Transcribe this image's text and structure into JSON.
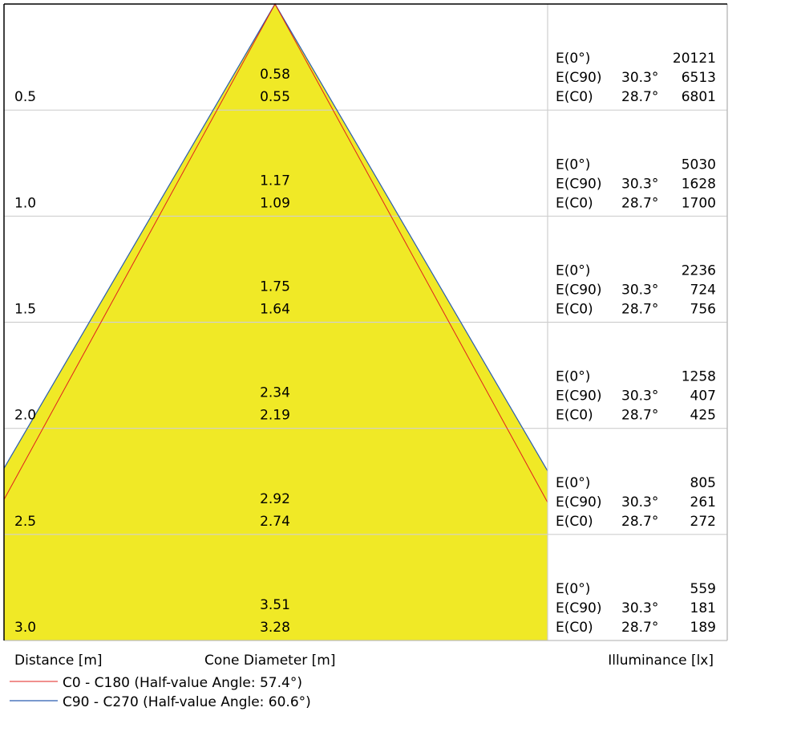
{
  "chart_data": {
    "type": "cone-diagram",
    "xlabel": "Distance [m]",
    "center_label": "Cone Diameter [m]",
    "right_label": "Illuminance [lx]",
    "fill_color": "#F0E926",
    "series": [
      {
        "name": "C0 - C180 (Half-value Angle: 57.4°)",
        "color": "#E0201E",
        "half_angle_deg": 57.4
      },
      {
        "name": "C90 - C270 (Half-value Angle: 60.6°)",
        "color": "#2A5CB0",
        "half_angle_deg": 60.6
      }
    ],
    "rows": [
      {
        "distance": "0.5",
        "d_c90": "0.58",
        "d_c0": "0.55",
        "e0": "20121",
        "e_c90": "6513",
        "e_c0": "6801"
      },
      {
        "distance": "1.0",
        "d_c90": "1.17",
        "d_c0": "1.09",
        "e0": "5030",
        "e_c90": "1628",
        "e_c0": "1700"
      },
      {
        "distance": "1.5",
        "d_c90": "1.75",
        "d_c0": "1.64",
        "e0": "2236",
        "e_c90": "724",
        "e_c0": "756"
      },
      {
        "distance": "2.0",
        "d_c90": "2.34",
        "d_c0": "2.19",
        "e0": "1258",
        "e_c90": "407",
        "e_c0": "425"
      },
      {
        "distance": "2.5",
        "d_c90": "2.92",
        "d_c0": "2.74",
        "e0": "805",
        "e_c90": "261",
        "e_c0": "272"
      },
      {
        "distance": "3.0",
        "d_c90": "3.51",
        "d_c0": "3.28",
        "e0": "559",
        "e_c90": "181",
        "e_c0": "189"
      }
    ],
    "row_labels": {
      "e0": "E(0°)",
      "e_c90": "E(C90)",
      "e_c0": "E(C0)"
    },
    "angles": {
      "c90": "30.3°",
      "c0": "28.7°"
    }
  }
}
